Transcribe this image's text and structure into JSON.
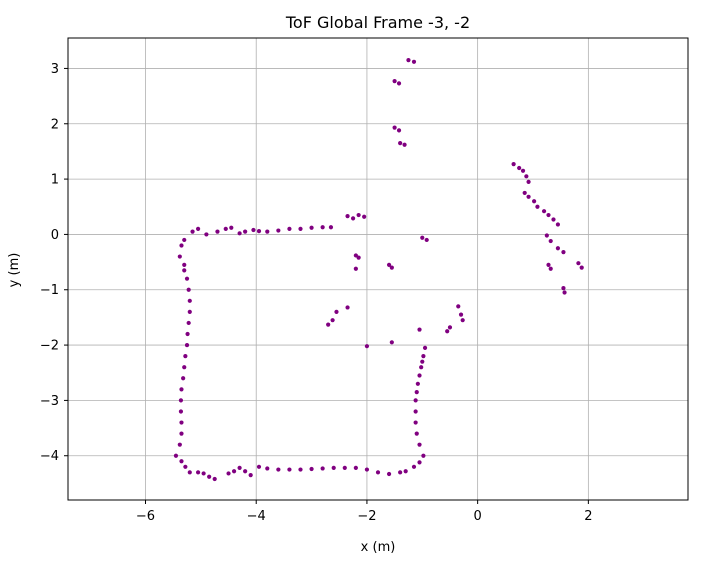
{
  "chart_data": {
    "type": "scatter",
    "title": "ToF Global Frame -3, -2",
    "xlabel": "x (m)",
    "ylabel": "y (m)",
    "xlim": [
      -7.4,
      3.8
    ],
    "ylim": [
      -4.8,
      3.55
    ],
    "xticks": [
      -6,
      -4,
      -2,
      0,
      2
    ],
    "yticks": [
      -4,
      -3,
      -2,
      -1,
      0,
      1,
      2,
      3
    ],
    "grid": true,
    "marker_color": "#800080",
    "series": [
      {
        "points": [
          [
            -1.25,
            3.15
          ],
          [
            -1.15,
            3.12
          ],
          [
            -1.5,
            2.77
          ],
          [
            -1.42,
            2.73
          ],
          [
            -1.5,
            1.93
          ],
          [
            -1.42,
            1.88
          ],
          [
            -1.4,
            1.65
          ],
          [
            -1.32,
            1.62
          ],
          [
            -2.15,
            0.35
          ],
          [
            -2.05,
            0.32
          ],
          [
            -2.35,
            0.33
          ],
          [
            -2.25,
            0.29
          ],
          [
            -2.2,
            -0.38
          ],
          [
            -2.15,
            -0.42
          ],
          [
            -2.2,
            -0.62
          ],
          [
            -1.6,
            -0.55
          ],
          [
            -1.55,
            -0.6
          ],
          [
            -1.0,
            -0.06
          ],
          [
            -0.92,
            -0.1
          ],
          [
            -2.7,
            -1.63
          ],
          [
            -2.62,
            -1.55
          ],
          [
            -2.55,
            -1.4
          ],
          [
            -2.35,
            -1.32
          ],
          [
            -2.0,
            -2.02
          ],
          [
            -1.55,
            -1.95
          ],
          [
            -1.05,
            -1.72
          ],
          [
            -0.55,
            -1.75
          ],
          [
            -0.5,
            -1.68
          ],
          [
            -0.35,
            -1.3
          ],
          [
            -0.3,
            -1.45
          ],
          [
            -0.27,
            -1.55
          ],
          [
            0.65,
            1.27
          ],
          [
            0.75,
            1.2
          ],
          [
            0.82,
            1.15
          ],
          [
            0.88,
            1.05
          ],
          [
            0.92,
            0.95
          ],
          [
            0.85,
            0.75
          ],
          [
            0.92,
            0.68
          ],
          [
            1.02,
            0.6
          ],
          [
            1.08,
            0.5
          ],
          [
            1.2,
            0.42
          ],
          [
            1.28,
            0.35
          ],
          [
            1.37,
            0.27
          ],
          [
            1.45,
            0.18
          ],
          [
            1.25,
            -0.02
          ],
          [
            1.32,
            -0.12
          ],
          [
            1.45,
            -0.25
          ],
          [
            1.55,
            -0.32
          ],
          [
            1.28,
            -0.55
          ],
          [
            1.32,
            -0.62
          ],
          [
            1.82,
            -0.52
          ],
          [
            1.88,
            -0.6
          ],
          [
            1.55,
            -0.97
          ],
          [
            1.57,
            -1.05
          ],
          [
            -5.15,
            0.05
          ],
          [
            -5.05,
            0.1
          ],
          [
            -4.9,
            0.0
          ],
          [
            -4.7,
            0.05
          ],
          [
            -4.55,
            0.1
          ],
          [
            -4.45,
            0.12
          ],
          [
            -4.3,
            0.02
          ],
          [
            -4.2,
            0.05
          ],
          [
            -4.05,
            0.08
          ],
          [
            -3.95,
            0.06
          ],
          [
            -3.8,
            0.05
          ],
          [
            -3.6,
            0.07
          ],
          [
            -3.4,
            0.1
          ],
          [
            -3.2,
            0.1
          ],
          [
            -3.0,
            0.12
          ],
          [
            -2.8,
            0.13
          ],
          [
            -2.65,
            0.13
          ],
          [
            -5.3,
            -0.1
          ],
          [
            -5.35,
            -0.2
          ],
          [
            -5.38,
            -0.4
          ],
          [
            -5.3,
            -0.55
          ],
          [
            -5.3,
            -0.65
          ],
          [
            -5.25,
            -0.8
          ],
          [
            -5.22,
            -1.0
          ],
          [
            -5.2,
            -1.2
          ],
          [
            -5.2,
            -1.4
          ],
          [
            -5.22,
            -1.6
          ],
          [
            -5.24,
            -1.8
          ],
          [
            -5.25,
            -2.0
          ],
          [
            -5.28,
            -2.2
          ],
          [
            -5.3,
            -2.4
          ],
          [
            -5.32,
            -2.6
          ],
          [
            -5.35,
            -2.8
          ],
          [
            -5.36,
            -3.0
          ],
          [
            -5.36,
            -3.2
          ],
          [
            -5.35,
            -3.4
          ],
          [
            -5.35,
            -3.6
          ],
          [
            -5.38,
            -3.8
          ],
          [
            -5.45,
            -4.0
          ],
          [
            -5.35,
            -4.1
          ],
          [
            -5.28,
            -4.2
          ],
          [
            -5.2,
            -4.3
          ],
          [
            -5.05,
            -4.3
          ],
          [
            -4.95,
            -4.32
          ],
          [
            -4.85,
            -4.38
          ],
          [
            -4.75,
            -4.42
          ],
          [
            -4.5,
            -4.32
          ],
          [
            -4.4,
            -4.28
          ],
          [
            -4.3,
            -4.22
          ],
          [
            -4.2,
            -4.28
          ],
          [
            -4.1,
            -4.35
          ],
          [
            -3.95,
            -4.2
          ],
          [
            -3.8,
            -4.23
          ],
          [
            -3.6,
            -4.25
          ],
          [
            -3.4,
            -4.25
          ],
          [
            -3.2,
            -4.25
          ],
          [
            -3.0,
            -4.24
          ],
          [
            -2.8,
            -4.23
          ],
          [
            -2.6,
            -4.22
          ],
          [
            -2.4,
            -4.22
          ],
          [
            -2.2,
            -4.22
          ],
          [
            -2.0,
            -4.25
          ],
          [
            -1.8,
            -4.3
          ],
          [
            -1.6,
            -4.33
          ],
          [
            -1.4,
            -4.3
          ],
          [
            -1.3,
            -4.28
          ],
          [
            -1.15,
            -4.2
          ],
          [
            -1.05,
            -4.12
          ],
          [
            -0.98,
            -4.0
          ],
          [
            -1.05,
            -3.8
          ],
          [
            -1.1,
            -3.6
          ],
          [
            -1.12,
            -3.4
          ],
          [
            -1.12,
            -3.2
          ],
          [
            -1.12,
            -3.0
          ],
          [
            -1.1,
            -2.85
          ],
          [
            -1.08,
            -2.7
          ],
          [
            -1.05,
            -2.55
          ],
          [
            -1.02,
            -2.4
          ],
          [
            -1.0,
            -2.3
          ],
          [
            -0.98,
            -2.2
          ],
          [
            -0.95,
            -2.05
          ]
        ]
      }
    ]
  }
}
